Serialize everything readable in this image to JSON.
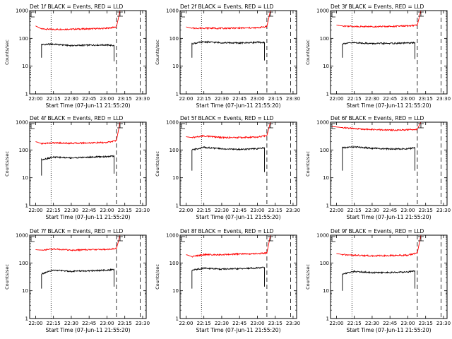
{
  "chart_data": [
    {
      "type": "line",
      "title": "Det 1f BLACK = Events, RED = LLD",
      "xlabel": "Start Time (07-Jun-11 21:55:20)",
      "ylabel": "Counts/sec",
      "yscale": "log",
      "ylim": [
        1,
        1000
      ],
      "yticks": [
        "1",
        "10",
        "100",
        "1000"
      ],
      "xlim": [
        "21:55",
        "23:33"
      ],
      "xticks": [
        "22:00",
        "22:15",
        "22:30",
        "22:45",
        "23:00",
        "23:15",
        "23:30"
      ],
      "vlines": [
        {
          "time": "22:13",
          "style": "dotted"
        },
        {
          "time": "23:08",
          "style": "dashed"
        },
        {
          "time": "23:28",
          "style": "dashed"
        }
      ],
      "series": [
        {
          "name": "LLD",
          "color": "#ff0000",
          "points": [
            [
              "22:00",
              280
            ],
            [
              "22:05",
              220
            ],
            [
              "22:15",
              210
            ],
            [
              "22:30",
              215
            ],
            [
              "22:45",
              220
            ],
            [
              "23:00",
              230
            ],
            [
              "23:08",
              260
            ],
            [
              "23:11",
              1000
            ]
          ]
        },
        {
          "name": "Events",
          "color": "#000000",
          "points": [
            [
              "22:05",
              20
            ],
            [
              "22:05",
              60
            ],
            [
              "22:15",
              62
            ],
            [
              "22:30",
              55
            ],
            [
              "22:45",
              57
            ],
            [
              "23:00",
              58
            ],
            [
              "23:06",
              55
            ],
            [
              "23:06",
              15
            ]
          ]
        }
      ]
    },
    {
      "type": "line",
      "title": "Det 2f BLACK = Events, RED = LLD",
      "xlabel": "Start Time (07-Jun-11 21:55:20)",
      "ylabel": "Counts/sec",
      "yscale": "log",
      "ylim": [
        1,
        1000
      ],
      "yticks": [
        "1",
        "10",
        "100",
        "1000"
      ],
      "xlim": [
        "21:55",
        "23:33"
      ],
      "xticks": [
        "22:00",
        "22:15",
        "22:30",
        "22:45",
        "23:00",
        "23:15",
        "23:30"
      ],
      "vlines": [
        {
          "time": "22:13",
          "style": "dotted"
        },
        {
          "time": "23:08",
          "style": "dashed"
        },
        {
          "time": "23:28",
          "style": "dashed"
        }
      ],
      "series": [
        {
          "name": "LLD",
          "color": "#ff0000",
          "points": [
            [
              "22:00",
              260
            ],
            [
              "22:05",
              230
            ],
            [
              "22:15",
              235
            ],
            [
              "22:30",
              230
            ],
            [
              "22:45",
              235
            ],
            [
              "23:00",
              240
            ],
            [
              "23:08",
              270
            ],
            [
              "23:11",
              1000
            ]
          ]
        },
        {
          "name": "Events",
          "color": "#000000",
          "points": [
            [
              "22:05",
              20
            ],
            [
              "22:05",
              65
            ],
            [
              "22:15",
              75
            ],
            [
              "22:30",
              70
            ],
            [
              "22:45",
              68
            ],
            [
              "23:00",
              72
            ],
            [
              "23:06",
              70
            ],
            [
              "23:06",
              16
            ]
          ]
        }
      ]
    },
    {
      "type": "line",
      "title": "Det 3f BLACK = Events, RED = LLD",
      "xlabel": "Start Time (07-Jun-11 21:55:20)",
      "ylabel": "Counts/sec",
      "yscale": "log",
      "ylim": [
        1,
        1000
      ],
      "yticks": [
        "1",
        "10",
        "100",
        "1000"
      ],
      "xlim": [
        "21:55",
        "23:33"
      ],
      "xticks": [
        "22:00",
        "22:15",
        "22:30",
        "22:45",
        "23:00",
        "23:15",
        "23:30"
      ],
      "vlines": [
        {
          "time": "22:13",
          "style": "dotted"
        },
        {
          "time": "23:08",
          "style": "dashed"
        },
        {
          "time": "23:28",
          "style": "dashed"
        }
      ],
      "series": [
        {
          "name": "LLD",
          "color": "#ff0000",
          "points": [
            [
              "22:00",
              300
            ],
            [
              "22:05",
              280
            ],
            [
              "22:15",
              270
            ],
            [
              "22:30",
              265
            ],
            [
              "22:45",
              270
            ],
            [
              "23:00",
              280
            ],
            [
              "23:08",
              300
            ],
            [
              "23:11",
              1000
            ]
          ]
        },
        {
          "name": "Events",
          "color": "#000000",
          "points": [
            [
              "22:05",
              20
            ],
            [
              "22:05",
              65
            ],
            [
              "22:15",
              70
            ],
            [
              "22:30",
              65
            ],
            [
              "22:45",
              66
            ],
            [
              "23:00",
              68
            ],
            [
              "23:06",
              70
            ],
            [
              "23:06",
              18
            ]
          ]
        }
      ]
    },
    {
      "type": "line",
      "title": "Det 4f BLACK = Events, RED = LLD",
      "xlabel": "Start Time (07-Jun-11 21:55:20)",
      "ylabel": "Counts/sec",
      "yscale": "log",
      "ylim": [
        1,
        1000
      ],
      "yticks": [
        "1",
        "10",
        "100",
        "1000"
      ],
      "xlim": [
        "21:55",
        "23:33"
      ],
      "xticks": [
        "22:00",
        "22:15",
        "22:30",
        "22:45",
        "23:00",
        "23:15",
        "23:30"
      ],
      "vlines": [
        {
          "time": "22:13",
          "style": "dotted"
        },
        {
          "time": "23:08",
          "style": "dashed"
        },
        {
          "time": "23:28",
          "style": "dashed"
        }
      ],
      "series": [
        {
          "name": "LLD",
          "color": "#ff0000",
          "points": [
            [
              "22:00",
              200
            ],
            [
              "22:05",
              170
            ],
            [
              "22:15",
              180
            ],
            [
              "22:30",
              175
            ],
            [
              "22:45",
              180
            ],
            [
              "23:00",
              185
            ],
            [
              "23:08",
              220
            ],
            [
              "23:11",
              1000
            ]
          ]
        },
        {
          "name": "Events",
          "color": "#000000",
          "points": [
            [
              "22:05",
              12
            ],
            [
              "22:05",
              45
            ],
            [
              "22:15",
              55
            ],
            [
              "22:30",
              52
            ],
            [
              "22:45",
              55
            ],
            [
              "23:00",
              58
            ],
            [
              "23:06",
              60
            ],
            [
              "23:06",
              14
            ]
          ]
        }
      ]
    },
    {
      "type": "line",
      "title": "Det 5f BLACK = Events, RED = LLD",
      "xlabel": "Start Time (07-Jun-11 21:55:20)",
      "ylabel": "Counts/sec",
      "yscale": "log",
      "ylim": [
        1,
        1000
      ],
      "yticks": [
        "1",
        "10",
        "100",
        "1000"
      ],
      "xlim": [
        "21:55",
        "23:33"
      ],
      "xticks": [
        "22:00",
        "22:15",
        "22:30",
        "22:45",
        "23:00",
        "23:15",
        "23:30"
      ],
      "vlines": [
        {
          "time": "22:13",
          "style": "dotted"
        },
        {
          "time": "23:08",
          "style": "dashed"
        },
        {
          "time": "23:28",
          "style": "dashed"
        }
      ],
      "series": [
        {
          "name": "LLD",
          "color": "#ff0000",
          "points": [
            [
              "22:00",
              300
            ],
            [
              "22:05",
              280
            ],
            [
              "22:15",
              320
            ],
            [
              "22:30",
              280
            ],
            [
              "22:45",
              280
            ],
            [
              "23:00",
              290
            ],
            [
              "23:08",
              330
            ],
            [
              "23:11",
              1000
            ]
          ]
        },
        {
          "name": "Events",
          "color": "#000000",
          "points": [
            [
              "22:05",
              18
            ],
            [
              "22:05",
              100
            ],
            [
              "22:15",
              125
            ],
            [
              "22:30",
              110
            ],
            [
              "22:45",
              105
            ],
            [
              "23:00",
              110
            ],
            [
              "23:06",
              120
            ],
            [
              "23:06",
              16
            ]
          ]
        }
      ]
    },
    {
      "type": "line",
      "title": "Det 6f BLACK = Events, RED = LLD",
      "xlabel": "Start Time (07-Jun-11 21:55:20)",
      "ylabel": "Counts/sec",
      "yscale": "log",
      "ylim": [
        1,
        1000
      ],
      "yticks": [
        "1",
        "10",
        "100",
        "1000"
      ],
      "xlim": [
        "21:55",
        "23:33"
      ],
      "xticks": [
        "22:00",
        "22:15",
        "22:30",
        "22:45",
        "23:00",
        "23:15",
        "23:30"
      ],
      "vlines": [
        {
          "time": "22:13",
          "style": "dotted"
        },
        {
          "time": "23:08",
          "style": "dashed"
        },
        {
          "time": "23:28",
          "style": "dashed"
        }
      ],
      "series": [
        {
          "name": "LLD",
          "color": "#ff0000",
          "points": [
            [
              "21:56",
              700
            ],
            [
              "22:05",
              640
            ],
            [
              "22:15",
              580
            ],
            [
              "22:30",
              540
            ],
            [
              "22:45",
              520
            ],
            [
              "23:00",
              530
            ],
            [
              "23:08",
              560
            ],
            [
              "23:11",
              1000
            ]
          ]
        },
        {
          "name": "Events",
          "color": "#000000",
          "points": [
            [
              "22:05",
              18
            ],
            [
              "22:05",
              120
            ],
            [
              "22:15",
              130
            ],
            [
              "22:30",
              115
            ],
            [
              "22:45",
              108
            ],
            [
              "23:00",
              110
            ],
            [
              "23:06",
              120
            ],
            [
              "23:06",
              18
            ]
          ]
        }
      ]
    },
    {
      "type": "line",
      "title": "Det 7f BLACK = Events, RED = LLD",
      "xlabel": "Start Time (07-Jun-11 21:55:20)",
      "ylabel": "Counts/sec",
      "yscale": "log",
      "ylim": [
        1,
        1000
      ],
      "yticks": [
        "1",
        "10",
        "100",
        "1000"
      ],
      "xlim": [
        "21:55",
        "23:33"
      ],
      "xticks": [
        "22:00",
        "22:15",
        "22:30",
        "22:45",
        "23:00",
        "23:15",
        "23:30"
      ],
      "vlines": [
        {
          "time": "22:13",
          "style": "dotted"
        },
        {
          "time": "23:08",
          "style": "dashed"
        },
        {
          "time": "23:28",
          "style": "dashed"
        }
      ],
      "series": [
        {
          "name": "LLD",
          "color": "#ff0000",
          "points": [
            [
              "22:00",
              300
            ],
            [
              "22:05",
              290
            ],
            [
              "22:15",
              320
            ],
            [
              "22:30",
              290
            ],
            [
              "22:45",
              300
            ],
            [
              "23:00",
              310
            ],
            [
              "23:08",
              330
            ],
            [
              "23:11",
              1000
            ]
          ]
        },
        {
          "name": "Events",
          "color": "#000000",
          "points": [
            [
              "22:05",
              12
            ],
            [
              "22:05",
              40
            ],
            [
              "22:15",
              55
            ],
            [
              "22:30",
              50
            ],
            [
              "22:45",
              52
            ],
            [
              "23:00",
              55
            ],
            [
              "23:06",
              58
            ],
            [
              "23:06",
              14
            ]
          ]
        }
      ]
    },
    {
      "type": "line",
      "title": "Det 8f BLACK = Events, RED = LLD",
      "xlabel": "Start Time (07-Jun-11 21:55:20)",
      "ylabel": "Counts/sec",
      "yscale": "log",
      "ylim": [
        1,
        1000
      ],
      "yticks": [
        "1",
        "10",
        "100",
        "1000"
      ],
      "xlim": [
        "21:55",
        "23:33"
      ],
      "xticks": [
        "22:00",
        "22:15",
        "22:30",
        "22:45",
        "23:00",
        "23:15",
        "23:30"
      ],
      "vlines": [
        {
          "time": "22:13",
          "style": "dotted"
        },
        {
          "time": "23:08",
          "style": "dashed"
        },
        {
          "time": "23:28",
          "style": "dashed"
        }
      ],
      "series": [
        {
          "name": "LLD",
          "color": "#ff0000",
          "points": [
            [
              "22:00",
              200
            ],
            [
              "22:05",
              170
            ],
            [
              "22:15",
              200
            ],
            [
              "22:30",
              200
            ],
            [
              "22:45",
              210
            ],
            [
              "23:00",
              215
            ],
            [
              "23:08",
              230
            ],
            [
              "23:11",
              1000
            ]
          ]
        },
        {
          "name": "Events",
          "color": "#000000",
          "points": [
            [
              "22:05",
              12
            ],
            [
              "22:05",
              55
            ],
            [
              "22:15",
              65
            ],
            [
              "22:30",
              60
            ],
            [
              "22:45",
              62
            ],
            [
              "23:00",
              66
            ],
            [
              "23:06",
              70
            ],
            [
              "23:06",
              14
            ]
          ]
        }
      ]
    },
    {
      "type": "line",
      "title": "Det 9f BLACK = Events, RED = LLD",
      "xlabel": "Start Time (07-Jun-11 21:55:20)",
      "ylabel": "Counts/sec",
      "yscale": "log",
      "ylim": [
        1,
        1000
      ],
      "yticks": [
        "1",
        "10",
        "100",
        "1000"
      ],
      "xlim": [
        "21:55",
        "23:33"
      ],
      "xticks": [
        "22:00",
        "22:15",
        "22:30",
        "22:45",
        "23:00",
        "23:15",
        "23:30"
      ],
      "vlines": [
        {
          "time": "22:13",
          "style": "dotted"
        },
        {
          "time": "23:08",
          "style": "dashed"
        },
        {
          "time": "23:28",
          "style": "dashed"
        }
      ],
      "series": [
        {
          "name": "LLD",
          "color": "#ff0000",
          "points": [
            [
              "22:00",
              220
            ],
            [
              "22:05",
              200
            ],
            [
              "22:15",
              190
            ],
            [
              "22:30",
              180
            ],
            [
              "22:45",
              185
            ],
            [
              "23:00",
              190
            ],
            [
              "23:08",
              230
            ],
            [
              "23:11",
              1000
            ]
          ]
        },
        {
          "name": "Events",
          "color": "#000000",
          "points": [
            [
              "22:05",
              10
            ],
            [
              "22:05",
              40
            ],
            [
              "22:15",
              50
            ],
            [
              "22:30",
              45
            ],
            [
              "22:45",
              45
            ],
            [
              "23:00",
              48
            ],
            [
              "23:06",
              52
            ],
            [
              "23:06",
              12
            ]
          ]
        }
      ]
    }
  ]
}
